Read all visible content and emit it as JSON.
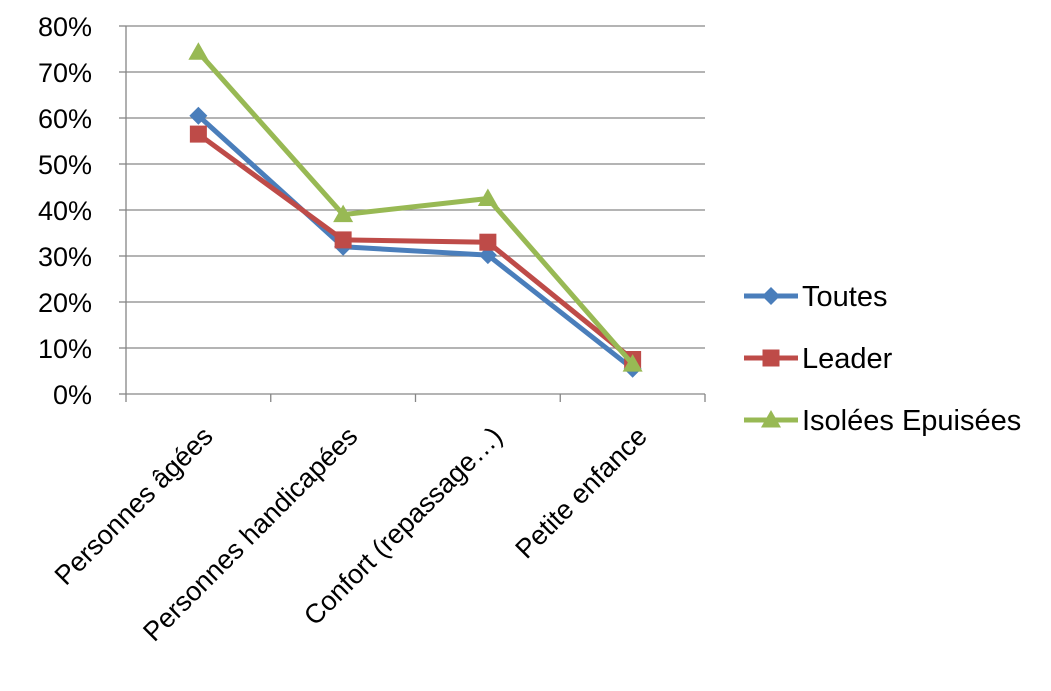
{
  "chart_data": {
    "type": "line",
    "title": "",
    "xlabel": "",
    "ylabel": "",
    "categories": [
      "Personnes âgées",
      "Personnes handicapées",
      "Confort (repassage…)",
      "Petite enfance"
    ],
    "ylim": [
      0,
      80
    ],
    "yticks": [
      0,
      10,
      20,
      30,
      40,
      50,
      60,
      70,
      80
    ],
    "ytick_labels": [
      "0%",
      "10%",
      "20%",
      "30%",
      "40%",
      "50%",
      "60%",
      "70%",
      "80%"
    ],
    "grid": true,
    "legend_position": "right",
    "series": [
      {
        "name": "Toutes",
        "values": [
          60.5,
          32,
          30.2,
          5.5
        ],
        "color": "#4a7ebb",
        "marker": "diamond"
      },
      {
        "name": "Leader",
        "values": [
          56.5,
          33.5,
          33,
          7.5
        ],
        "color": "#be4b48",
        "marker": "square"
      },
      {
        "name": "Isolées Epuisées",
        "values": [
          74.3,
          39,
          42.5,
          6.5
        ],
        "color": "#98b954",
        "marker": "triangle"
      }
    ]
  }
}
